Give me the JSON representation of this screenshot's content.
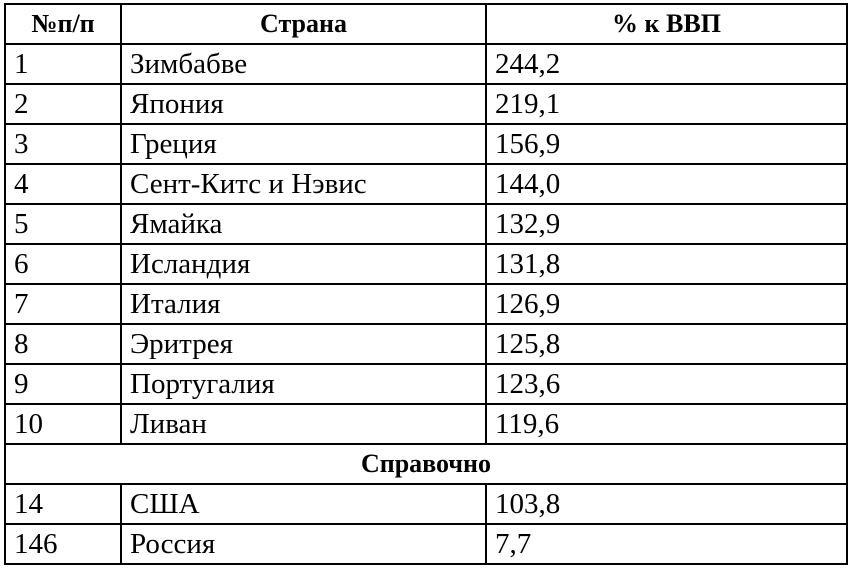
{
  "table": {
    "headers": [
      "№п/п",
      "Страна",
      "% к ВВП"
    ],
    "rows": [
      [
        "1",
        "Зимбабве",
        "244,2"
      ],
      [
        "2",
        "Япония",
        "219,1"
      ],
      [
        "3",
        "Греция",
        "156,9"
      ],
      [
        "4",
        "Сент-Китс и Нэвис",
        "144,0"
      ],
      [
        "5",
        "Ямайка",
        "132,9"
      ],
      [
        "6",
        "Исландия",
        "131,8"
      ],
      [
        "7",
        "Италия",
        "126,9"
      ],
      [
        "8",
        "Эритрея",
        "125,8"
      ],
      [
        "9",
        "Португалия",
        "123,6"
      ],
      [
        "10",
        "Ливан",
        "119,6"
      ]
    ],
    "section_label": "Справочно",
    "reference_rows": [
      [
        "14",
        "США",
        "103,8"
      ],
      [
        "146",
        "Россия",
        "7,7"
      ]
    ]
  }
}
